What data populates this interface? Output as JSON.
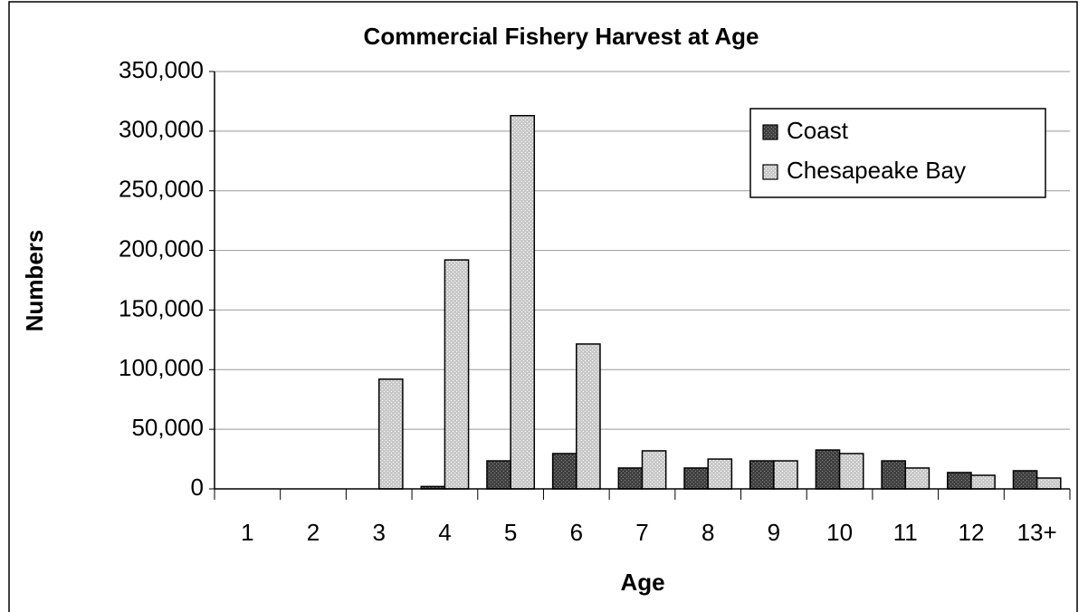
{
  "chart_data": {
    "type": "bar",
    "title": "Commercial Fishery Harvest at Age",
    "x_label": "Age",
    "y_label": "Numbers",
    "categories": [
      "1",
      "2",
      "3",
      "4",
      "5",
      "6",
      "7",
      "8",
      "9",
      "10",
      "11",
      "12",
      "13+"
    ],
    "series": [
      {
        "name": "Coast",
        "color": "#404040",
        "values": [
          0,
          0,
          0,
          2000,
          23500,
          29600,
          17500,
          17500,
          23500,
          32600,
          23500,
          13700,
          15200
        ]
      },
      {
        "name": "Chesapeake Bay",
        "color": "#c8c8c8",
        "values": [
          0,
          0,
          92000,
          192000,
          313000,
          121500,
          31900,
          25000,
          23500,
          29600,
          17500,
          11400,
          9100
        ]
      }
    ],
    "ylim": [
      0,
      350000
    ],
    "yticks": [
      0,
      {
        "value": 50000,
        "label": "50,000"
      },
      {
        "value": 100000,
        "label": "100,000"
      },
      {
        "value": 150000,
        "label": "150,000"
      },
      {
        "value": 200000,
        "label": "200,000"
      },
      {
        "value": 250000,
        "label": "250,000"
      },
      {
        "value": 300000,
        "label": "300,000"
      },
      {
        "value": 350000,
        "label": "350,000"
      }
    ],
    "grid": true,
    "legend": "top-right"
  }
}
